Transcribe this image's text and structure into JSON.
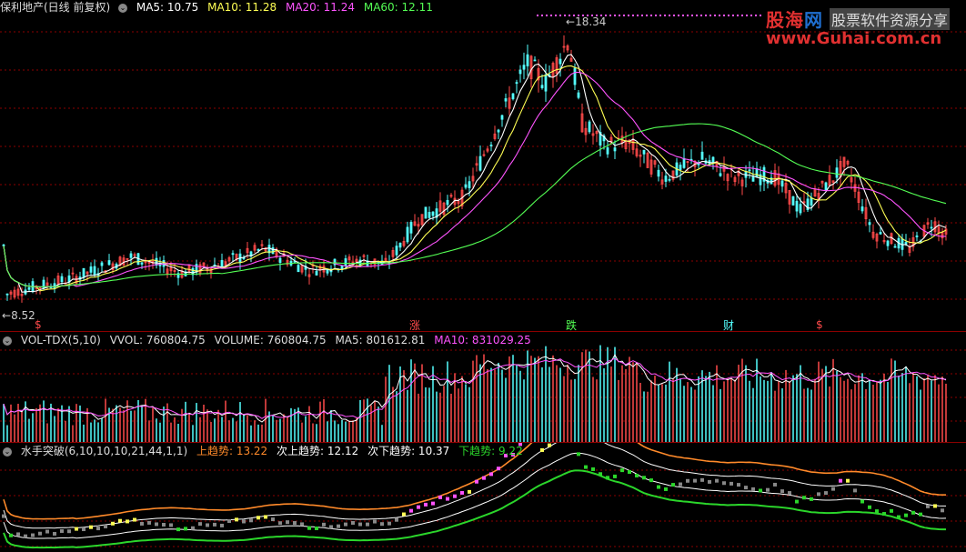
{
  "price_header": {
    "title": "保利地产(日线 前复权)",
    "ma5": "MA5: 10.75",
    "ma10": "MA10: 11.28",
    "ma20": "MA20: 11.24",
    "ma60": "MA60: 12.11"
  },
  "price_labels": {
    "high": "18.34",
    "low": "8.52"
  },
  "markers": [
    "$",
    "涨",
    "跌",
    "财",
    "$"
  ],
  "vol_header": {
    "name": "VOL-TDX(5,10)",
    "vvol": "VVOL: 760804.75",
    "volume": "VOLUME: 760804.75",
    "ma5": "MA5: 801612.81",
    "ma10": "MA10: 831029.25"
  },
  "ind_header": {
    "name": "水手突破(6,10,10,10,21,44,1,1)",
    "up": "上趋势: 13.22",
    "next_up": "次上趋势: 12.12",
    "next_down": "次下趋势: 10.37",
    "down": "下趋势: 9.22"
  },
  "watermark": {
    "line1a": "股海",
    "line1b": "网",
    "line1c": "股票软件资源分享",
    "line2": "www.Guhai.com.cn"
  },
  "colors": {
    "up": "#ff4a4a",
    "down": "#54ffff",
    "ma5": "#ffffff",
    "ma10": "#ffff54",
    "ma20": "#ff54ff",
    "ma60": "#54ff54",
    "grid": "#8b0000",
    "trend_up": "#ff8a2a",
    "trend_down": "#2bd62b"
  },
  "icons": {
    "settings": "circle-down-icon"
  }
}
